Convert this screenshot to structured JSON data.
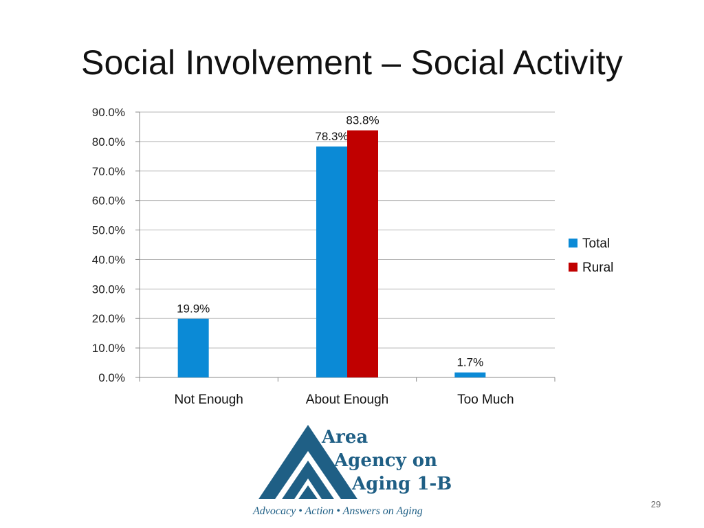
{
  "title": "Social Involvement – Social Activity",
  "chart_data": {
    "type": "bar",
    "categories": [
      "Not Enough",
      "About Enough",
      "Too Much"
    ],
    "series": [
      {
        "name": "Total",
        "values": [
          19.9,
          78.3,
          1.7
        ],
        "color": "#0b8ad6",
        "labels": [
          "19.9%",
          "78.3%",
          "1.7%"
        ]
      },
      {
        "name": "Rural",
        "values": [
          null,
          83.8,
          null
        ],
        "color": "#c00000",
        "labels": [
          null,
          "83.8%",
          null
        ]
      }
    ],
    "ylim": [
      0,
      90
    ],
    "yticks": [
      0,
      10,
      20,
      30,
      40,
      50,
      60,
      70,
      80,
      90
    ],
    "ytick_labels": [
      "0.0%",
      "10.0%",
      "20.0%",
      "30.0%",
      "40.0%",
      "50.0%",
      "60.0%",
      "70.0%",
      "80.0%",
      "90.0%"
    ],
    "grid": true,
    "legend": "right"
  },
  "logo": {
    "line1": "Area",
    "line2": "Agency on",
    "line3": "Aging 1-B",
    "tagline": "Advocacy • Action • Answers on Aging"
  },
  "page_number": "29"
}
